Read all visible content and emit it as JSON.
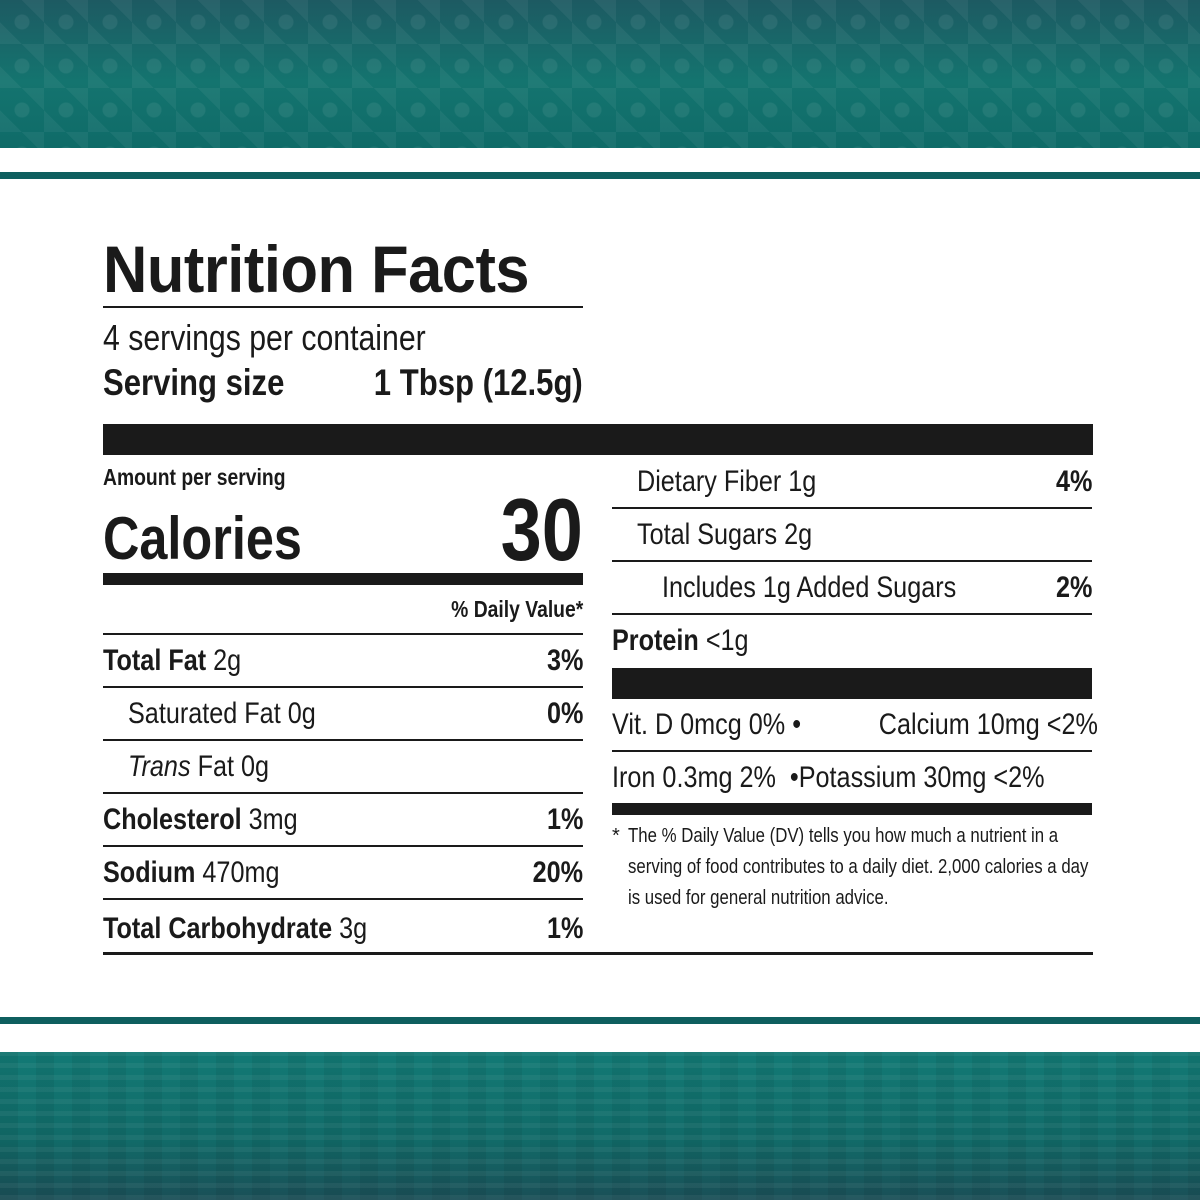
{
  "label": {
    "title": "Nutrition Facts",
    "servings_per_container": "4 servings per container",
    "serving_size_label": "Serving size",
    "serving_size_value": "1 Tbsp (12.5g)",
    "amount_per_serving": "Amount per serving",
    "calories_label": "Calories",
    "calories_value": "30",
    "daily_value_header": "% Daily Value*",
    "nutrients_left": [
      {
        "name": "Total Fat",
        "amount": "2g",
        "dv": "3%"
      },
      {
        "name": "Saturated Fat",
        "amount": "0g",
        "dv": "0%"
      },
      {
        "name": "Trans",
        "name_suffix": "Fat",
        "amount": "0g",
        "dv": ""
      },
      {
        "name": "Cholesterol",
        "amount": "3mg",
        "dv": "1%"
      },
      {
        "name": "Sodium",
        "amount": "470mg",
        "dv": "20%"
      },
      {
        "name": "Total Carbohydrate",
        "amount": "3g",
        "dv": "1%"
      }
    ],
    "nutrients_right": [
      {
        "name": "Dietary Fiber",
        "amount": "1g",
        "dv": "4%"
      },
      {
        "name": "Total Sugars",
        "amount": "2g",
        "dv": ""
      },
      {
        "name": "Includes 1g Added Sugars",
        "dv": "2%"
      },
      {
        "name": "Protein",
        "amount": "<1g",
        "dv": ""
      }
    ],
    "vitamins": [
      {
        "left": "Vit. D 0mcg 0%",
        "bullet": "•",
        "right": "Calcium 10mg <2%"
      },
      {
        "left": "Iron 0.3mg 2%",
        "bullet": "•",
        "right": "Potassium 30mg <2%"
      }
    ],
    "footnote_star": "*",
    "footnote": "The % Daily Value (DV) tells you how much a nutrient in a serving of food contributes to a daily diet. 2,000 calories a day is used for general nutrition advice."
  }
}
